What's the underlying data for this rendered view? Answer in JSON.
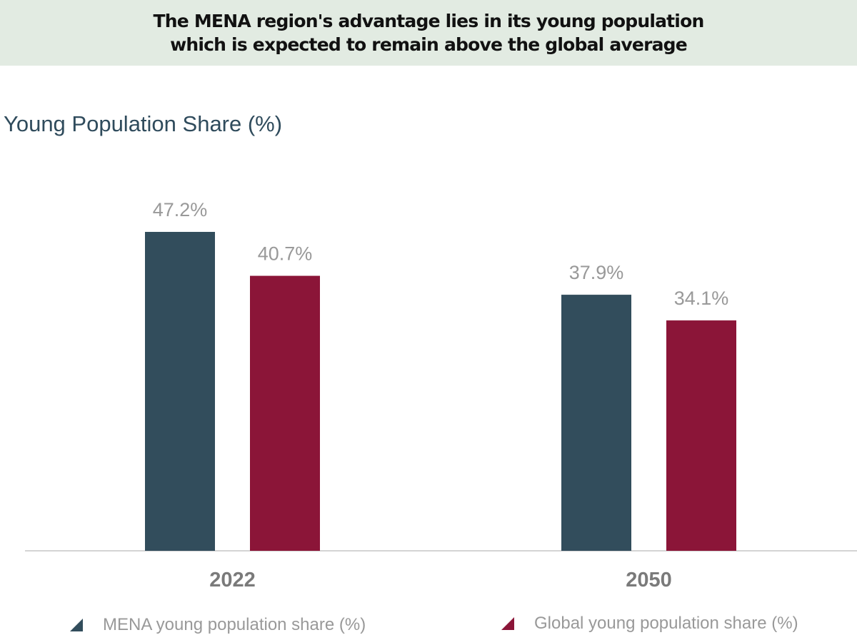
{
  "header": {
    "title_line1": "The MENA region's advantage lies in its young population",
    "title_line2": "which is expected to remain above the global average"
  },
  "chart_data": {
    "type": "bar",
    "title": "The MENA region's advantage lies in its young population which is expected to remain above the global average",
    "ylabel": "Young Population Share (%)",
    "xlabel": "",
    "categories": [
      "2022",
      "2050"
    ],
    "series": [
      {
        "name": "MENA young population share (%)",
        "values": [
          47.2,
          37.9
        ],
        "labels": [
          "47.2%",
          "37.9%"
        ],
        "color": "#324d5c"
      },
      {
        "name": "Global young population share (%)",
        "values": [
          40.7,
          34.1
        ],
        "labels": [
          "40.7%",
          "34.1%"
        ],
        "color": "#8b1538"
      }
    ],
    "ylim": [
      0,
      50
    ],
    "grid": false,
    "legend_position": "bottom"
  }
}
